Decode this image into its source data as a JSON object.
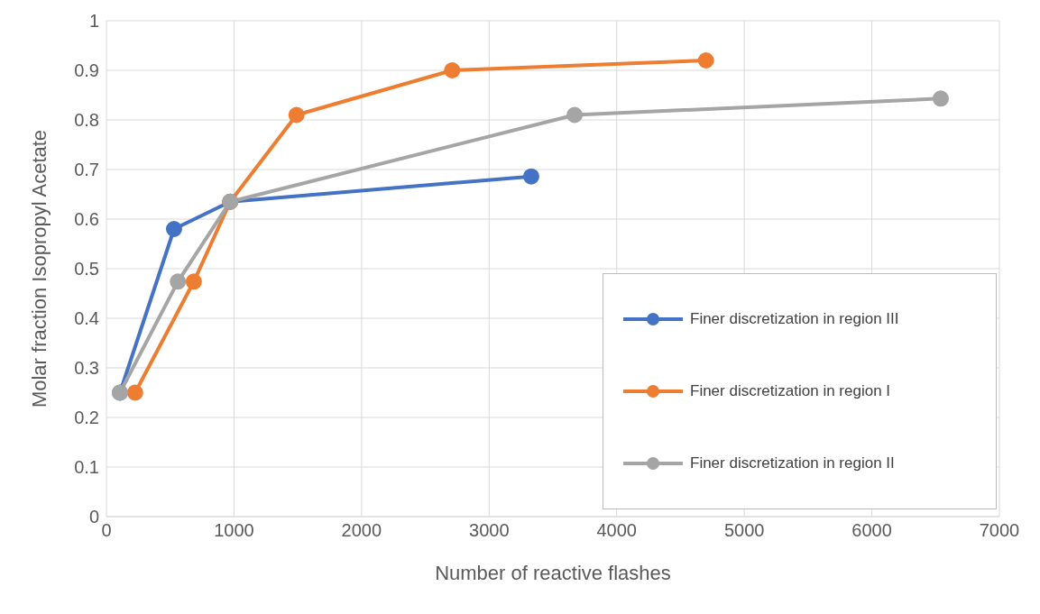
{
  "chart_data": {
    "type": "line",
    "xlabel": "Number of reactive flashes",
    "ylabel": "Molar fraction Isopropyl Acetate",
    "xlim": [
      0,
      7000
    ],
    "xticks": [
      0,
      1000,
      2000,
      3000,
      4000,
      5000,
      6000,
      7000
    ],
    "ylim": [
      0,
      1
    ],
    "yticks": [
      0,
      0.1,
      0.2,
      0.3,
      0.4,
      0.5,
      0.6,
      0.7,
      0.8,
      0.9,
      1
    ],
    "grid": true,
    "legend": "right",
    "marker": "circle",
    "line_style": "solid",
    "series": [
      {
        "name": "Finer discretization in region III",
        "color": "#4472c4",
        "x": [
          106,
          530,
          970,
          3330
        ],
        "values": [
          0.25,
          0.58,
          0.635,
          0.686
        ]
      },
      {
        "name": "Finer discretization in region I",
        "color": "#ed7d31",
        "x": [
          225,
          685,
          970,
          1490,
          2710,
          4700
        ],
        "values": [
          0.25,
          0.474,
          0.635,
          0.81,
          0.9,
          0.92
        ]
      },
      {
        "name": "Finer discretization in region II",
        "color": "#a5a5a5",
        "x": [
          106,
          560,
          970,
          3670,
          6540
        ],
        "values": [
          0.25,
          0.474,
          0.635,
          0.81,
          0.843
        ]
      }
    ]
  }
}
